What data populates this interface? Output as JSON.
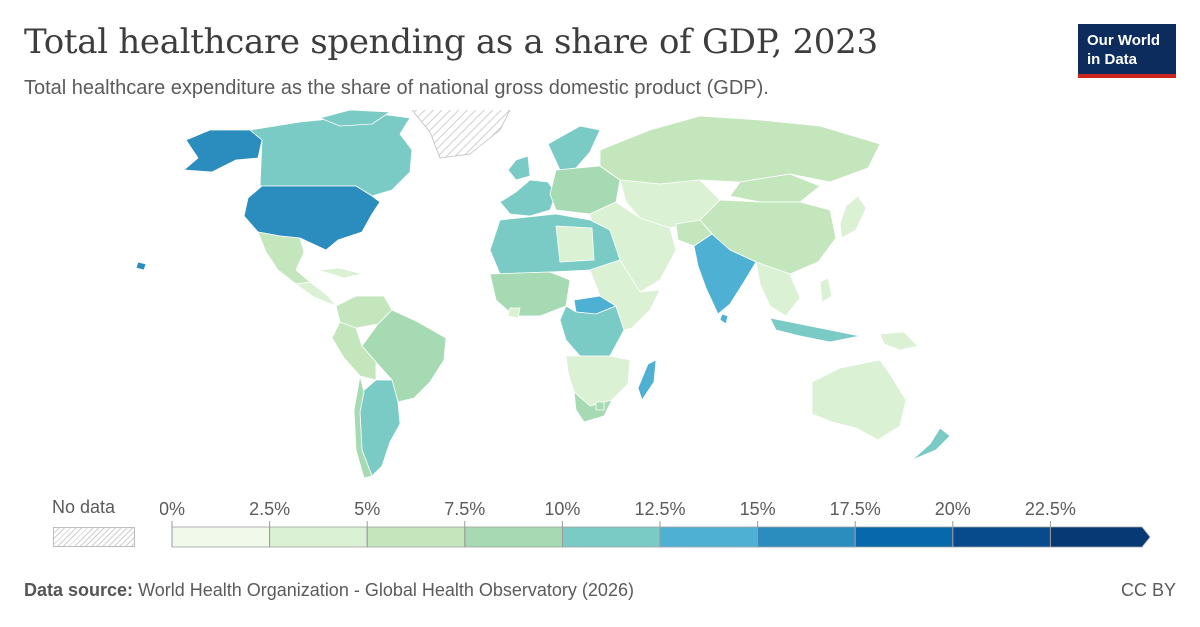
{
  "header": {
    "title": "Total healthcare spending as a share of GDP, 2023",
    "subtitle": "Total healthcare expenditure as the share of national gross domestic product (GDP)."
  },
  "logo": {
    "line1": "Our World",
    "line2": "in Data"
  },
  "legend": {
    "no_data_label": "No data",
    "ticks": [
      "0%",
      "2.5%",
      "5%",
      "7.5%",
      "10%",
      "12.5%",
      "15%",
      "17.5%",
      "20%",
      "22.5%"
    ],
    "colors": [
      "#f0f9ea",
      "#dbf1d4",
      "#c4e6bd",
      "#a6dab3",
      "#7acbc5",
      "#4eb0d2",
      "#2b8cbe",
      "#0868ac",
      "#084b8c",
      "#073a75"
    ]
  },
  "map": {
    "regions": [
      {
        "name": "Alaska",
        "color": "#2b8cbe"
      },
      {
        "name": "Canada",
        "color": "#7acbc5"
      },
      {
        "name": "Greenland",
        "color": "no-data"
      },
      {
        "name": "United States",
        "color": "#2b8cbe"
      },
      {
        "name": "Mexico",
        "color": "#c4e6bd"
      },
      {
        "name": "Central America",
        "color": "#dbf1d4"
      },
      {
        "name": "Colombia/Venezuela",
        "color": "#c4e6bd"
      },
      {
        "name": "Brazil",
        "color": "#a6dab3"
      },
      {
        "name": "Peru/Bolivia",
        "color": "#c4e6bd"
      },
      {
        "name": "Argentina",
        "color": "#7acbc5"
      },
      {
        "name": "Chile",
        "color": "#a6dab3"
      },
      {
        "name": "Western Europe",
        "color": "#7acbc5"
      },
      {
        "name": "Scandinavia",
        "color": "#7acbc5"
      },
      {
        "name": "Eastern Europe",
        "color": "#a6dab3"
      },
      {
        "name": "Russia",
        "color": "#c4e6bd"
      },
      {
        "name": "Central Asia",
        "color": "#dbf1d4"
      },
      {
        "name": "China",
        "color": "#c4e6bd"
      },
      {
        "name": "Mongolia",
        "color": "#dbf1d4"
      },
      {
        "name": "Middle East",
        "color": "#c4e6bd"
      },
      {
        "name": "Afghanistan",
        "color": "#4eb0d2"
      },
      {
        "name": "India",
        "color": "#dbf1d4"
      },
      {
        "name": "Southeast Asia",
        "color": "#dbf1d4"
      },
      {
        "name": "Japan",
        "color": "#7acbc5"
      },
      {
        "name": "Indonesia",
        "color": "#dbf1d4"
      },
      {
        "name": "Papua New Guinea",
        "color": "#dbf1d4"
      },
      {
        "name": "Australia",
        "color": "#7acbc5"
      },
      {
        "name": "New Zealand",
        "color": "#7acbc5"
      },
      {
        "name": "North Africa",
        "color": "#dbf1d4"
      },
      {
        "name": "Libya",
        "color": "#a6dab3"
      },
      {
        "name": "West Africa",
        "color": "#dbf1d4"
      },
      {
        "name": "Liberia",
        "color": "#4eb0d2"
      },
      {
        "name": "Central African Republic",
        "color": "#7acbc5"
      },
      {
        "name": "Central Africa",
        "color": "#dbf1d4"
      },
      {
        "name": "East Africa",
        "color": "#dbf1d4"
      },
      {
        "name": "Southern Africa",
        "color": "#a6dab3"
      },
      {
        "name": "South Africa",
        "color": "#a6dab3"
      },
      {
        "name": "Lesotho",
        "color": "#4eb0d2"
      },
      {
        "name": "Madagascar",
        "color": "#dbf1d4"
      }
    ]
  },
  "footer": {
    "source_label": "Data source:",
    "source_text": "World Health Organization - Global Health Observatory (2026)",
    "license": "CC BY"
  }
}
